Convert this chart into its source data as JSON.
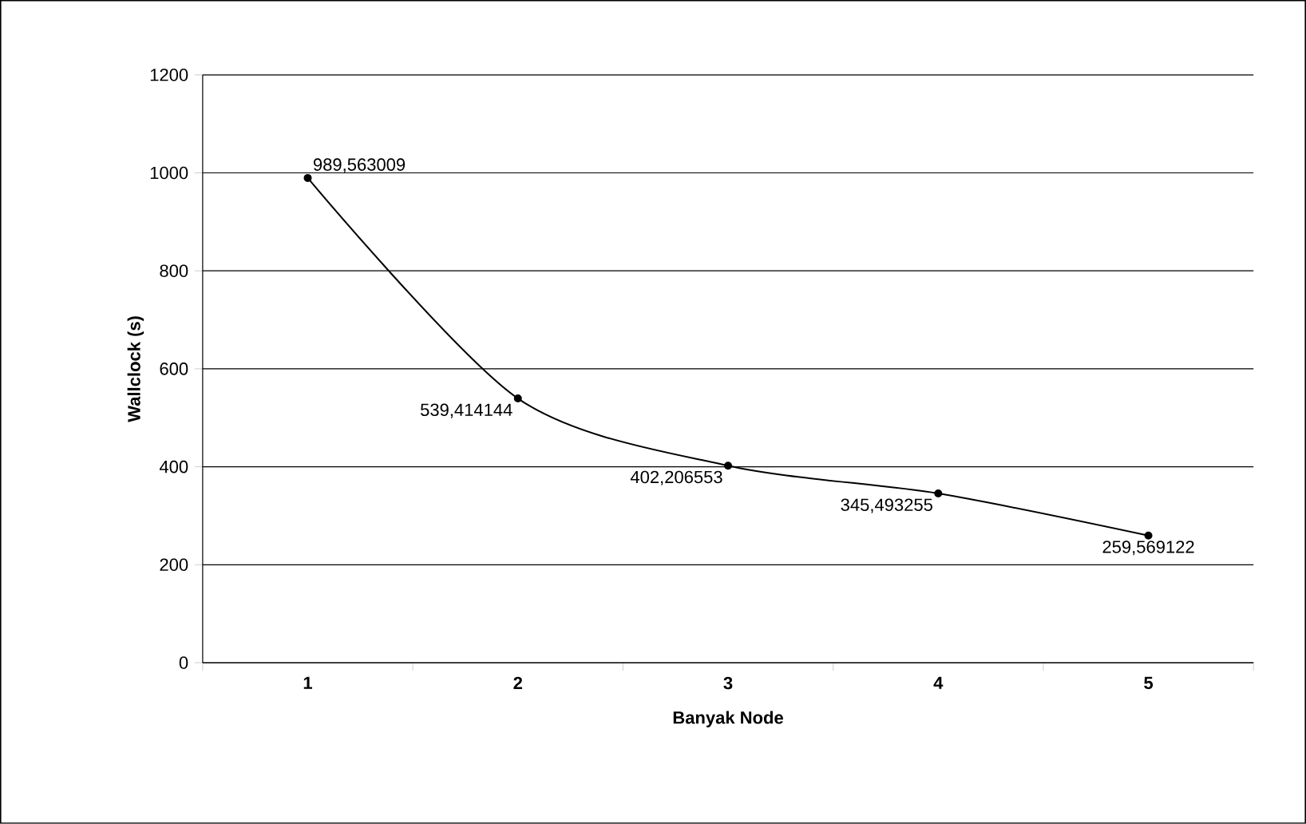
{
  "chart_data": {
    "type": "line",
    "xlabel": "Banyak Node",
    "ylabel": "Wallclock (s)",
    "categories": [
      "1",
      "2",
      "3",
      "4",
      "5"
    ],
    "values": [
      989.563009,
      539.414144,
      402.206553,
      345.493255,
      259.569122
    ],
    "value_labels": [
      "989,563009",
      "539,414144",
      "402,206553",
      "345,493255",
      "259,569122"
    ],
    "color": "#000000",
    "marker": "circle",
    "line_style": "solid",
    "grid": "y",
    "ylim": [
      0,
      1200
    ],
    "yticks": [
      0,
      200,
      400,
      600,
      800,
      1000,
      1200
    ]
  }
}
